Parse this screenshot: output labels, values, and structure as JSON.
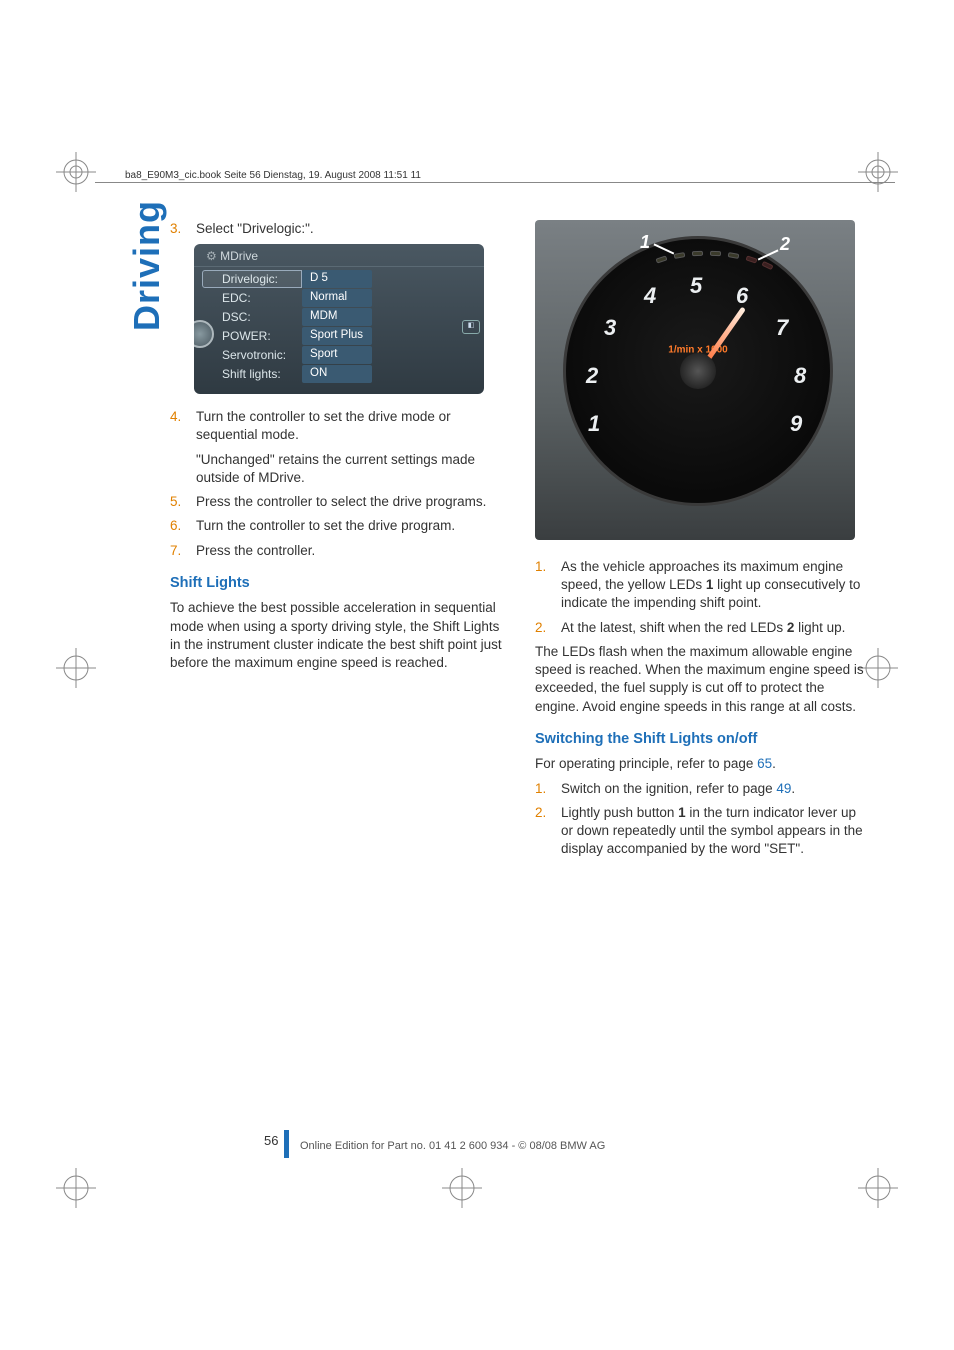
{
  "header": {
    "running": "ba8_E90M3_cic.book  Seite 56  Dienstag, 19. August 2008  11:51 11"
  },
  "tab": "Driving",
  "left": {
    "step3": {
      "num": "3.",
      "text": "Select \"Drivelogic:\"."
    },
    "mdrive": {
      "title": "MDrive",
      "rows": [
        {
          "label": "Drivelogic:",
          "value": "D 5",
          "selected": true
        },
        {
          "label": "EDC:",
          "value": "Normal"
        },
        {
          "label": "DSC:",
          "value": "MDM"
        },
        {
          "label": "POWER:",
          "value": "Sport Plus"
        },
        {
          "label": "Servotronic:",
          "value": "Sport"
        },
        {
          "label": "Shift lights:",
          "value": "ON"
        }
      ]
    },
    "step4": {
      "num": "4.",
      "text": "Turn the controller to set the drive mode or sequential mode."
    },
    "step4_sub": "\"Unchanged\" retains the current settings made outside of MDrive.",
    "step5": {
      "num": "5.",
      "text": "Press the controller to select the drive programs."
    },
    "step6": {
      "num": "6.",
      "text": "Turn the controller to set the drive program."
    },
    "step7": {
      "num": "7.",
      "text": "Press the controller."
    },
    "h_shift": "Shift Lights",
    "p_shift": "To achieve the best possible acceleration in sequential mode when using a sporty driving style, the Shift Lights in the instrument cluster indicate the best shift point just before the maximum engine speed is reached."
  },
  "right": {
    "tacho": {
      "center": "1/min x 1000",
      "nums": [
        "1",
        "2",
        "3",
        "4",
        "5",
        "6",
        "7",
        "8",
        "9"
      ],
      "callouts": {
        "one": "1",
        "two": "2"
      }
    },
    "s1": {
      "num": "1.",
      "text_a": "As the vehicle approaches its maximum engine speed, the yellow LEDs ",
      "b1": "1",
      "text_b": " light up consecutively to indicate the impending shift point."
    },
    "s2": {
      "num": "2.",
      "text_a": "At the latest, shift when the red LEDs ",
      "b1": "2",
      "text_b": " light up."
    },
    "p_leds": "The LEDs flash when the maximum allowable engine speed is reached. When the maximum engine speed is exceeded, the fuel supply is cut off to protect the engine. Avoid engine speeds in this range at all costs.",
    "h_switch": "Switching the Shift Lights on/off",
    "p_op_a": "For operating principle, refer to page ",
    "p_op_link": "65",
    "p_op_b": ".",
    "sw1": {
      "num": "1.",
      "text_a": "Switch on the ignition, refer to page ",
      "link": "49",
      "text_b": "."
    },
    "sw2": {
      "num": "2.",
      "text_a": "Lightly push button ",
      "b1": "1",
      "text_b": " in the turn indicator lever up or down repeatedly until the symbol appears in the display accompanied by the word \"SET\"."
    }
  },
  "footer": {
    "page": "56",
    "line": "Online Edition for Part no. 01 41 2 600 934 - © 08/08 BMW AG"
  },
  "colors": {
    "accent": "#1e6fb8",
    "step_num": "#e08000"
  }
}
